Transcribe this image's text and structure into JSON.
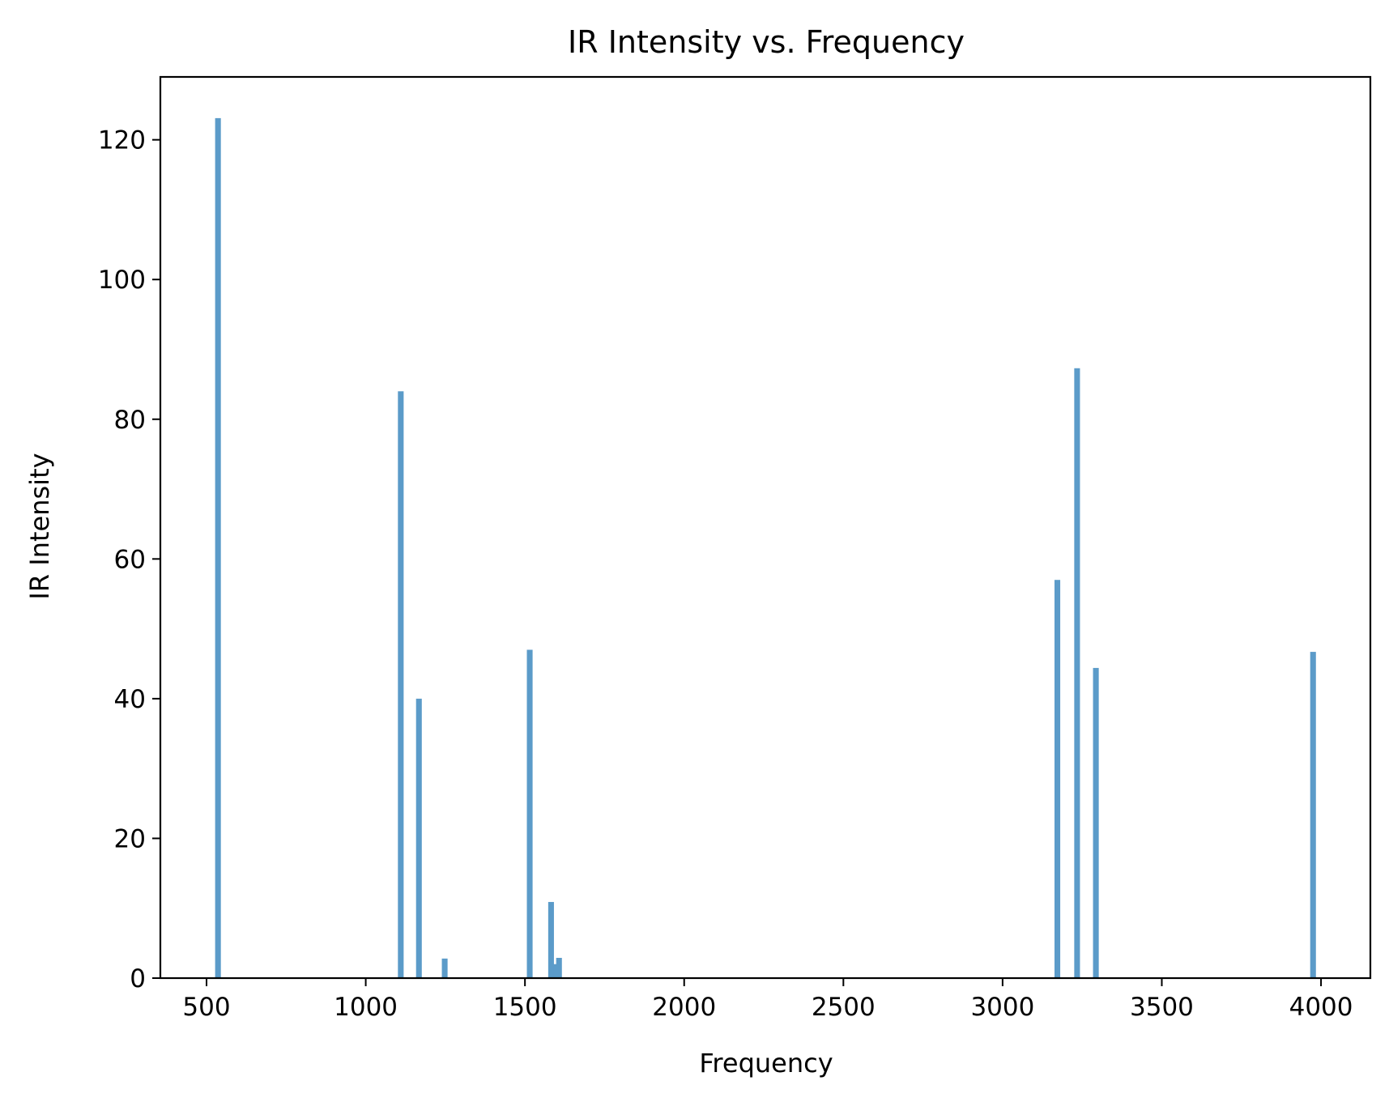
{
  "chart_data": {
    "type": "bar",
    "title": "IR Intensity vs. Frequency",
    "xlabel": "Frequency",
    "ylabel": "IR Intensity",
    "xlim": [
      355,
      4155
    ],
    "ylim": [
      0,
      129
    ],
    "xticks": [
      500,
      1000,
      1500,
      2000,
      2500,
      3000,
      3500,
      4000
    ],
    "yticks": [
      0,
      20,
      40,
      60,
      80,
      100,
      120
    ],
    "grid": false,
    "legend": "none",
    "bar_color": "#5b9bc9",
    "bar_width": 18,
    "points": [
      {
        "x": 536,
        "y": 123.1
      },
      {
        "x": 1110,
        "y": 84.0
      },
      {
        "x": 1167,
        "y": 40.0
      },
      {
        "x": 1248,
        "y": 2.8
      },
      {
        "x": 1515,
        "y": 47.0
      },
      {
        "x": 1582,
        "y": 10.9
      },
      {
        "x": 1598,
        "y": 2.0
      },
      {
        "x": 1607,
        "y": 2.9
      },
      {
        "x": 3172,
        "y": 57.0
      },
      {
        "x": 3234,
        "y": 87.3
      },
      {
        "x": 3293,
        "y": 44.4
      },
      {
        "x": 3975,
        "y": 46.7
      }
    ]
  }
}
